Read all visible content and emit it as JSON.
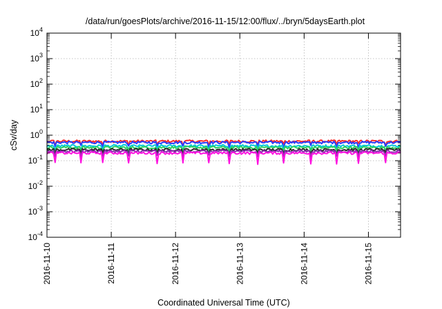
{
  "chart_data": {
    "type": "line",
    "title": "/data/run/goesPlots/archive/2016-11-15/12:00/flux/../bryn/5daysEarth.plot",
    "xlabel": "Coordinated Universal Time (UTC)",
    "ylabel": "cSv/day",
    "yscale": "log",
    "ylim": [
      0.0001,
      10000
    ],
    "xlim": [
      "2016-11-10T00:00",
      "2016-11-15T12:00"
    ],
    "grid": true,
    "x_ticks": [
      "2016-11-10",
      "2016-11-11",
      "2016-11-12",
      "2016-11-13",
      "2016-11-14",
      "2016-11-15"
    ],
    "y_ticks": [
      {
        "base": "10",
        "exp": "-4"
      },
      {
        "base": "10",
        "exp": "-3"
      },
      {
        "base": "10",
        "exp": "-2"
      },
      {
        "base": "10",
        "exp": "-1"
      },
      {
        "base": "10",
        "exp": "0"
      },
      {
        "base": "10",
        "exp": "1"
      },
      {
        "base": "10",
        "exp": "2"
      },
      {
        "base": "10",
        "exp": "3"
      },
      {
        "base": "10",
        "exp": "4"
      }
    ],
    "series": [
      {
        "color": "#ff2a2a",
        "level": 0.58,
        "dip_depth": 0.25
      },
      {
        "color": "#2a3cff",
        "level": 0.52,
        "dip_depth": 0.3
      },
      {
        "color": "#00c8d8",
        "level": 0.38,
        "dip_depth": 0.3
      },
      {
        "color": "#2ed060",
        "level": 0.33,
        "dip_depth": 0.3
      },
      {
        "color": "#2a2a2a",
        "level": 0.27,
        "dip_depth": 0.3
      },
      {
        "color": "#8a2ab0",
        "level": 0.235,
        "dip_depth": 0.35
      },
      {
        "color": "#ff10e0",
        "level": 0.2,
        "dip_depth": 0.6
      }
    ]
  }
}
